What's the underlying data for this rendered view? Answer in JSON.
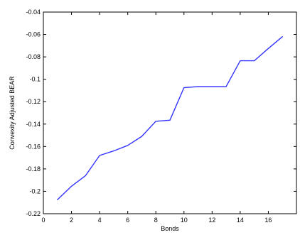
{
  "chart_data": {
    "type": "line",
    "title": "",
    "xlabel": "Bonds",
    "ylabel": "Convexity Adjusted BEAR",
    "xlim": [
      0,
      18
    ],
    "ylim": [
      -0.22,
      -0.04
    ],
    "xticks": [
      0,
      2,
      4,
      6,
      8,
      10,
      12,
      14,
      16
    ],
    "xtick_labels": [
      "0",
      "2",
      "4",
      "6",
      "8",
      "10",
      "12",
      "14",
      "16"
    ],
    "yticks": [
      -0.22,
      -0.2,
      -0.18,
      -0.16,
      -0.14,
      -0.12,
      -0.1,
      -0.08,
      -0.06,
      -0.04
    ],
    "ytick_labels": [
      "-0.22",
      "-0.2",
      "-0.18",
      "-0.16",
      "-0.14",
      "-0.12",
      "-0.1",
      "-0.08",
      "-0.06",
      "-0.04"
    ],
    "grid": false,
    "series": [
      {
        "color": "#3333ff",
        "x": [
          1,
          2,
          3,
          4,
          5,
          6,
          7,
          8,
          9,
          10,
          11,
          12,
          13,
          14,
          15,
          16,
          17
        ],
        "y": [
          -0.2075,
          -0.1955,
          -0.186,
          -0.168,
          -0.164,
          -0.159,
          -0.151,
          -0.1375,
          -0.1365,
          -0.1075,
          -0.1065,
          -0.1065,
          -0.1065,
          -0.0835,
          -0.0835,
          -0.0725,
          -0.062
        ]
      }
    ]
  }
}
